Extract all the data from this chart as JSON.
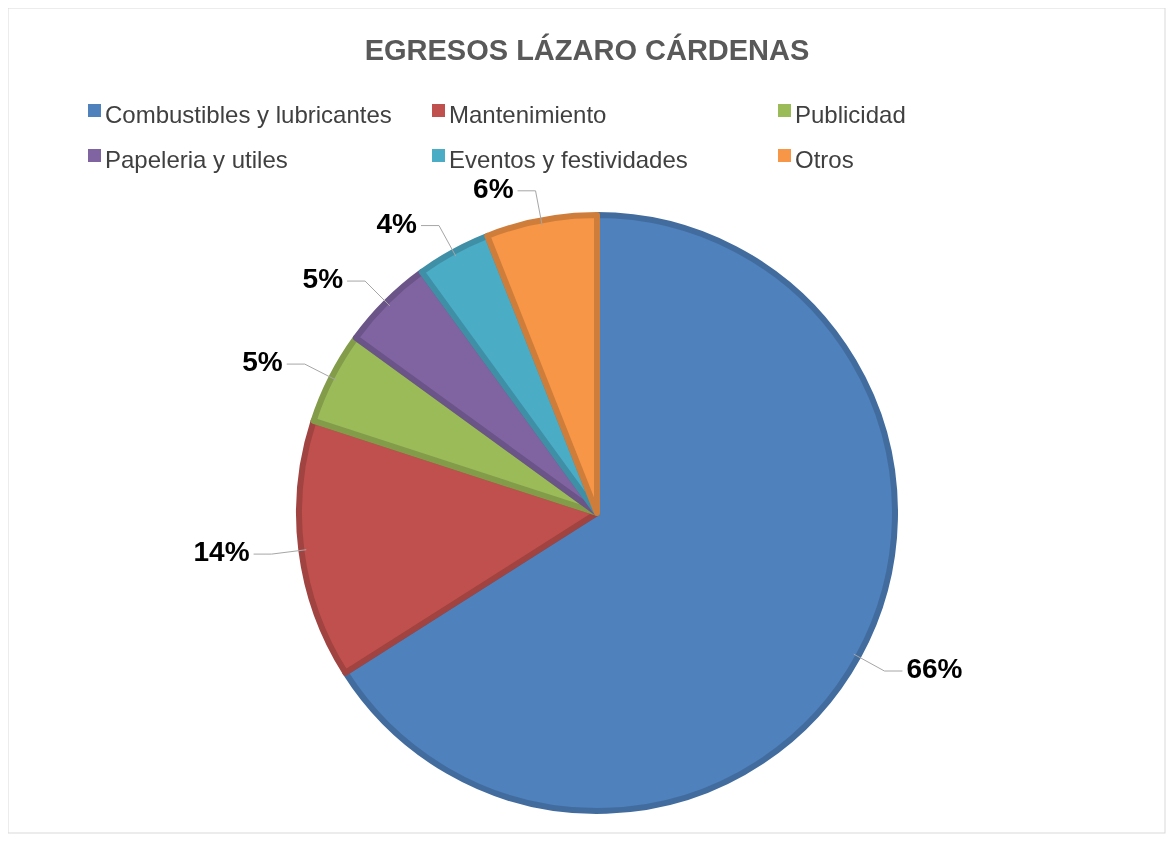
{
  "chart_data": {
    "type": "pie",
    "title": "EGRESOS LÁZARO CÁRDENAS",
    "categories": [
      "Combustibles y lubricantes",
      "Mantenimiento",
      "Publicidad",
      "Papeleria y utiles",
      "Eventos y festividades",
      "Otros"
    ],
    "values": [
      66,
      14,
      5,
      5,
      4,
      6
    ],
    "colors": [
      "#4f81bd",
      "#c0504d",
      "#9bbb59",
      "#8064a2",
      "#4bacc6",
      "#f79646"
    ],
    "value_labels": [
      "66%",
      "14%",
      "5%",
      "5%",
      "4%",
      "6%"
    ],
    "legend": "top"
  }
}
